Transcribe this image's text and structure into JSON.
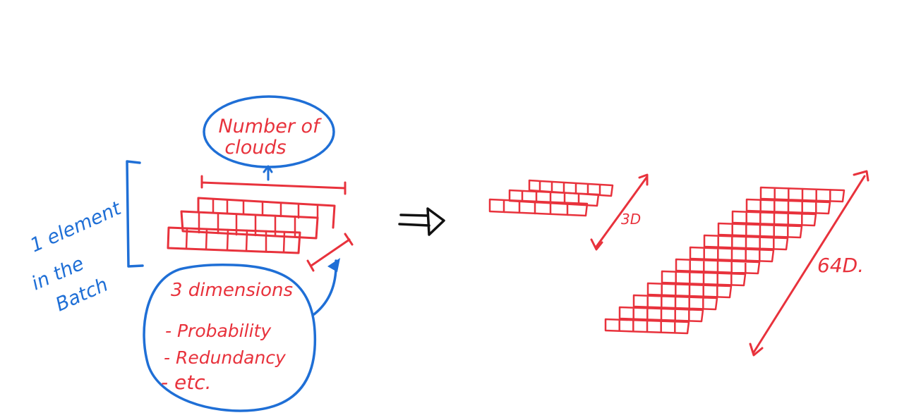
{
  "colors": {
    "red": "#e8323c",
    "blue": "#1f6fd6",
    "black": "#111111",
    "background": "#ffffff"
  },
  "labels": {
    "clouds_line1": "Number of",
    "clouds_line2": "clouds",
    "batch_line1": "1 element",
    "batch_line2": "in the",
    "batch_line3": "Batch",
    "dims_title": "3 dimensions",
    "dims_item1": "- Probability",
    "dims_item2": "- Redundancy",
    "dims_item3": "- etc.",
    "small_dim": "3D",
    "large_dim": "64D."
  },
  "icons": {
    "transform_arrow": "implies-arrow-icon"
  }
}
